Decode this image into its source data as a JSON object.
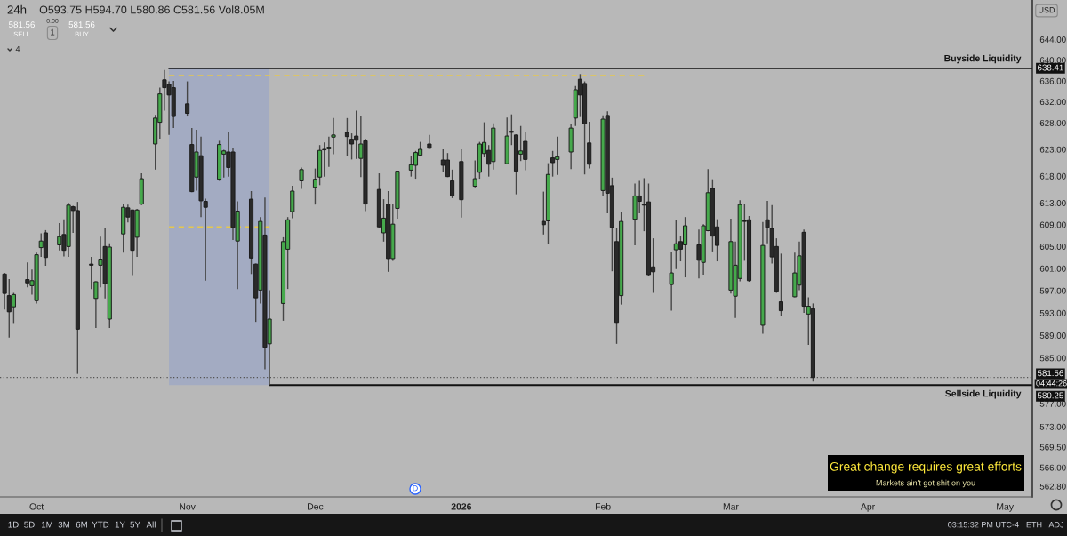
{
  "chart_data": {
    "type": "candlestick",
    "title": "24h",
    "subtitle": "O593.75 H594.70 L580.86 C581.56 Vol8.05M",
    "x": [
      "2025-09-24",
      "2025-09-25",
      "2025-09-26",
      "2025-09-29",
      "2025-09-30",
      "2025-10-01",
      "2025-10-02",
      "2025-10-03",
      "2025-10-06",
      "2025-10-07",
      "2025-10-08",
      "2025-10-09",
      "2025-10-10",
      "2025-10-13",
      "2025-10-14",
      "2025-10-15",
      "2025-10-16",
      "2025-10-17",
      "2025-10-20",
      "2025-10-21",
      "2025-10-22",
      "2025-10-23",
      "2025-10-24",
      "2025-10-27",
      "2025-10-28",
      "2025-10-29",
      "2025-10-30",
      "2025-10-31",
      "2025-11-03",
      "2025-11-04",
      "2025-11-05",
      "2025-11-06",
      "2025-11-07",
      "2025-11-10",
      "2025-11-11",
      "2025-11-12",
      "2025-11-13",
      "2025-11-14",
      "2025-11-17",
      "2025-11-18",
      "2025-11-19",
      "2025-11-20",
      "2025-11-21",
      "2025-11-24",
      "2025-11-25",
      "2025-11-26",
      "2025-11-28",
      "2025-12-01",
      "2025-12-02",
      "2025-12-03",
      "2025-12-04",
      "2025-12-05",
      "2025-12-08",
      "2025-12-09",
      "2025-12-10",
      "2025-12-11",
      "2025-12-12",
      "2025-12-15",
      "2025-12-16",
      "2025-12-17",
      "2025-12-18",
      "2025-12-19",
      "2025-12-22",
      "2025-12-23",
      "2025-12-24",
      "2025-12-26",
      "2025-12-29",
      "2025-12-30",
      "2025-12-31",
      "2026-01-02",
      "2026-01-05",
      "2026-01-06",
      "2026-01-07",
      "2026-01-08",
      "2026-01-09",
      "2026-01-12",
      "2026-01-13",
      "2026-01-14",
      "2026-01-15",
      "2026-01-16",
      "2026-01-20",
      "2026-01-21",
      "2026-01-22",
      "2026-01-23",
      "2026-01-26",
      "2026-01-27",
      "2026-01-28",
      "2026-01-29",
      "2026-01-30",
      "2026-02-02",
      "2026-02-03",
      "2026-02-04",
      "2026-02-05",
      "2026-02-06",
      "2026-02-09",
      "2026-02-10",
      "2026-02-11",
      "2026-02-12",
      "2026-02-13",
      "2026-02-17",
      "2026-02-18",
      "2026-02-19",
      "2026-02-20",
      "2026-02-23",
      "2026-02-24",
      "2026-02-25",
      "2026-02-26",
      "2026-02-27",
      "2026-03-02",
      "2026-03-03",
      "2026-03-04",
      "2026-03-05",
      "2026-03-06",
      "2026-03-09",
      "2026-03-10",
      "2026-03-11",
      "2026-03-12",
      "2026-03-13",
      "2026-03-16",
      "2026-03-17",
      "2026-03-18",
      "2026-03-19",
      "2026-03-20"
    ],
    "ohlc": [
      [
        600.0,
        600.2,
        593.6,
        596.5
      ],
      [
        596.1,
        599.1,
        588.6,
        593.2
      ],
      [
        594.1,
        596.6,
        591.2,
        596.3
      ],
      [
        599.0,
        602.1,
        597.6,
        598.4
      ],
      [
        597.9,
        600.8,
        596.3,
        598.8
      ],
      [
        595.2,
        603.9,
        594.7,
        603.5
      ],
      [
        604.8,
        607.4,
        603.1,
        606.0
      ],
      [
        607.5,
        608.0,
        601.5,
        603.0
      ],
      [
        605.3,
        609.3,
        604.3,
        606.8
      ],
      [
        607.2,
        610.0,
        603.2,
        604.3
      ],
      [
        605.0,
        613.0,
        603.1,
        612.6
      ],
      [
        612.3,
        612.5,
        607.5,
        611.6
      ],
      [
        611.6,
        613.2,
        582.2,
        590.1
      ],
      [
        601.8,
        603.1,
        597.3,
        601.6
      ],
      [
        595.6,
        598.7,
        590.3,
        598.6
      ],
      [
        601.6,
        606.8,
        597.6,
        602.7
      ],
      [
        605.0,
        608.4,
        595.6,
        598.3
      ],
      [
        591.9,
        605.6,
        590.3,
        604.9
      ],
      [
        607.3,
        612.8,
        603.9,
        612.2
      ],
      [
        612.1,
        612.7,
        609.4,
        610.4
      ],
      [
        611.7,
        611.8,
        599.8,
        604.3
      ],
      [
        606.7,
        611.9,
        603.1,
        611.7
      ],
      [
        612.8,
        618.5,
        612.6,
        617.5
      ],
      [
        624.0,
        629.5,
        619.2,
        628.9
      ],
      [
        628.1,
        634.7,
        625.0,
        633.5
      ],
      [
        636.2,
        638.1,
        630.3,
        634.7
      ],
      [
        635.3,
        635.9,
        625.7,
        633.3
      ],
      [
        634.7,
        636.0,
        627.0,
        629.2
      ],
      [
        631.6,
        635.9,
        629.2,
        629.8
      ],
      [
        623.9,
        627.0,
        615.0,
        615.1
      ],
      [
        617.8,
        626.7,
        615.3,
        622.5
      ],
      [
        621.8,
        625.4,
        610.4,
        613.4
      ],
      [
        613.3,
        613.8,
        598.8,
        612.2
      ],
      [
        617.4,
        624.6,
        617.1,
        623.9
      ],
      [
        622.1,
        622.9,
        617.7,
        622.7
      ],
      [
        622.5,
        626.2,
        617.9,
        619.6
      ],
      [
        622.5,
        623.3,
        606.2,
        608.5
      ],
      [
        606.0,
        613.3,
        597.3,
        611.5
      ],
      [
        613.7,
        615.2,
        600.0,
        602.9
      ],
      [
        601.8,
        601.9,
        591.4,
        595.7
      ],
      [
        597.1,
        610.4,
        594.7,
        609.6
      ],
      [
        607.1,
        614.0,
        583.0,
        586.9
      ],
      [
        587.5,
        597.1,
        580.25,
        591.9
      ],
      [
        594.7,
        606.7,
        591.6,
        605.9
      ],
      [
        604.5,
        610.4,
        597.3,
        609.9
      ],
      [
        611.4,
        616.2,
        610.2,
        615.2
      ],
      [
        617.1,
        619.6,
        615.6,
        619.2
      ],
      [
        615.9,
        619.4,
        612.7,
        617.4
      ],
      [
        617.8,
        623.8,
        616.3,
        622.8
      ],
      [
        623.0,
        624.3,
        617.9,
        622.9
      ],
      [
        623.1,
        625.4,
        619.7,
        623.4
      ],
      [
        625.3,
        628.9,
        622.1,
        625.7
      ],
      [
        626.2,
        628.9,
        621.8,
        625.4
      ],
      [
        624.9,
        626.0,
        621.1,
        624.0
      ],
      [
        625.5,
        630.3,
        621.2,
        624.7
      ],
      [
        621.3,
        629.2,
        617.8,
        624.0
      ],
      [
        624.6,
        625.0,
        611.5,
        612.8
      ],
      [
        615.5,
        618.5,
        608.5,
        608.6
      ],
      [
        607.5,
        613.7,
        605.9,
        610.2
      ],
      [
        612.8,
        615.2,
        600.4,
        602.8
      ],
      [
        602.8,
        612.9,
        602.4,
        609.1
      ],
      [
        612.0,
        619.0,
        610.1,
        618.9
      ],
      [
        619.1,
        621.8,
        617.9,
        620.1
      ],
      [
        620.0,
        622.7,
        617.5,
        622.4
      ],
      [
        621.9,
        624.4,
        621.8,
        623.0
      ],
      [
        624.0,
        625.7,
        623.1,
        623.2
      ],
      [
        621.0,
        623.0,
        618.8,
        620.0
      ],
      [
        621.0,
        622.3,
        617.8,
        617.9
      ],
      [
        617.1,
        619.2,
        613.9,
        614.3
      ],
      [
        620.7,
        623.0,
        610.3,
        613.6
      ],
      [
        616.1,
        620.9,
        615.9,
        617.5
      ],
      [
        618.7,
        624.4,
        617.5,
        624.0
      ],
      [
        622.2,
        628.1,
        621.5,
        624.3
      ],
      [
        622.8,
        623.8,
        617.9,
        620.2
      ],
      [
        620.7,
        627.9,
        619.2,
        627.0
      ],
      [
        620.3,
        629.0,
        620.2,
        625.5
      ],
      [
        626.4,
        629.6,
        623.8,
        626.2
      ],
      [
        625.7,
        625.8,
        614.6,
        618.9
      ],
      [
        622.1,
        627.4,
        620.8,
        622.7
      ],
      [
        624.5,
        626.2,
        619.1,
        621.1
      ],
      [
        609.6,
        615.1,
        607.2,
        609.0
      ],
      [
        609.7,
        620.4,
        605.5,
        618.3
      ],
      [
        621.4,
        622.7,
        617.9,
        620.5
      ],
      [
        621.1,
        625.4,
        618.2,
        621.6
      ],
      [
        622.5,
        627.7,
        619.3,
        627.0
      ],
      [
        628.9,
        635.0,
        627.4,
        634.3
      ],
      [
        636.3,
        637.3,
        629.1,
        633.3
      ],
      [
        635.5,
        635.9,
        618.3,
        627.8
      ],
      [
        624.2,
        628.2,
        619.4,
        620.2
      ],
      [
        615.3,
        629.4,
        614.3,
        628.7
      ],
      [
        629.4,
        630.2,
        611.1,
        614.8
      ],
      [
        616.2,
        617.7,
        600.5,
        608.5
      ],
      [
        605.9,
        608.4,
        587.5,
        591.3
      ],
      [
        596.1,
        611.4,
        594.5,
        609.6
      ],
      [
        610.0,
        616.6,
        605.2,
        614.3
      ],
      [
        614.3,
        617.1,
        611.1,
        613.3
      ],
      [
        612.7,
        617.6,
        607.8,
        612.6
      ],
      [
        613.2,
        616.6,
        599.6,
        599.9
      ],
      [
        601.3,
        606.5,
        596.6,
        600.4
      ],
      [
        598.1,
        604.0,
        593.4,
        600.2
      ],
      [
        604.4,
        609.8,
        600.9,
        605.5
      ],
      [
        605.9,
        606.9,
        602.3,
        604.5
      ],
      [
        605.3,
        610.4,
        599.4,
        608.8
      ],
      [
        605.3,
        608.1,
        599.2,
        602.5
      ],
      [
        602.1,
        609.1,
        599.9,
        608.8
      ],
      [
        607.9,
        619.3,
        607.8,
        614.9
      ],
      [
        615.7,
        617.4,
        604.1,
        606.9
      ],
      [
        608.6,
        610.0,
        602.3,
        605.2
      ],
      [
        597.1,
        610.1,
        596.5,
        605.9
      ],
      [
        596.0,
        605.9,
        592.1,
        601.6
      ],
      [
        599.2,
        613.5,
        598.7,
        612.7
      ],
      [
        609.7,
        612.8,
        602.4,
        609.6
      ],
      [
        609.9,
        610.6,
        598.6,
        598.8
      ],
      [
        590.8,
        609.5,
        589.3,
        605.2
      ],
      [
        609.9,
        613.4,
        605.6,
        608.5
      ],
      [
        608.3,
        612.6,
        601.9,
        603.1
      ],
      [
        605.0,
        606.5,
        596.6,
        596.9
      ],
      [
        595.0,
        603.7,
        592.4,
        593.4
      ],
      [
        595.9,
        603.9,
        595.8,
        600.2
      ],
      [
        598.0,
        605.9,
        597.1,
        603.3
      ],
      [
        607.6,
        608.1,
        593.0,
        594.2
      ],
      [
        592.8,
        595.8,
        587.3,
        594.2
      ],
      [
        593.75,
        594.7,
        580.86,
        581.56
      ]
    ],
    "colors": [
      "#2a2a2a",
      "#2a2a2a",
      "#46a94c",
      "#2a2a2a",
      "#46a94c",
      "#46a94c",
      "#46a94c",
      "#2a2a2a",
      "#46a94c",
      "#2a2a2a",
      "#46a94c",
      "#2a2a2a",
      "#2a2a2a",
      "#2a2a2a",
      "#46a94c",
      "#46a94c",
      "#2a2a2a",
      "#46a94c",
      "#46a94c",
      "#2a2a2a",
      "#2a2a2a",
      "#46a94c",
      "#46a94c",
      "#46a94c",
      "#46a94c",
      "#2a2a2a",
      "#2a2a2a",
      "#2a2a2a",
      "#2a2a2a",
      "#2a2a2a",
      "#46a94c",
      "#2a2a2a",
      "#2a2a2a",
      "#46a94c",
      "#46a94c",
      "#2a2a2a",
      "#2a2a2a",
      "#46a94c",
      "#2a2a2a",
      "#2a2a2a",
      "#46a94c",
      "#2a2a2a",
      "#46a94c",
      "#46a94c",
      "#46a94c",
      "#46a94c",
      "#46a94c",
      "#46a94c",
      "#46a94c",
      "#2a2a2a",
      "#46a94c",
      "#46a94c",
      "#2a2a2a",
      "#2a2a2a",
      "#2a2a2a",
      "#46a94c",
      "#2a2a2a",
      "#2a2a2a",
      "#46a94c",
      "#2a2a2a",
      "#46a94c",
      "#46a94c",
      "#46a94c",
      "#46a94c",
      "#46a94c",
      "#2a2a2a",
      "#2a2a2a",
      "#2a2a2a",
      "#2a2a2a",
      "#2a2a2a",
      "#46a94c",
      "#46a94c",
      "#46a94c",
      "#2a2a2a",
      "#46a94c",
      "#46a94c",
      "#2a2a2a",
      "#2a2a2a",
      "#46a94c",
      "#2a2a2a",
      "#2a2a2a",
      "#46a94c",
      "#2a2a2a",
      "#46a94c",
      "#46a94c",
      "#46a94c",
      "#2a2a2a",
      "#2a2a2a",
      "#2a2a2a",
      "#46a94c",
      "#2a2a2a",
      "#2a2a2a",
      "#2a2a2a",
      "#46a94c",
      "#46a94c",
      "#2a2a2a",
      "#2a2a2a",
      "#2a2a2a",
      "#2a2a2a",
      "#46a94c",
      "#46a94c",
      "#2a2a2a",
      "#46a94c",
      "#2a2a2a",
      "#46a94c",
      "#46a94c",
      "#2a2a2a",
      "#2a2a2a",
      "#46a94c",
      "#46a94c",
      "#46a94c",
      "#2a2a2a",
      "#2a2a2a",
      "#46a94c",
      "#2a2a2a",
      "#2a2a2a",
      "#2a2a2a",
      "#2a2a2a",
      "#46a94c",
      "#46a94c",
      "#2a2a2a",
      "#46a94c",
      "#2a2a2a"
    ],
    "series": [
      {
        "type": "line",
        "x": [
          "2025-10-30",
          "2026-02-11"
        ],
        "values": [
          637.0,
          637.0
        ],
        "color": "#e6c84c",
        "line_style": "dashed"
      },
      {
        "type": "line",
        "x": [
          "2025-10-30",
          "2025-11-21"
        ],
        "values": [
          608.6,
          608.6
        ],
        "color": "#e6c84c",
        "line_style": "dashed"
      }
    ],
    "ref_lines": [
      {
        "axis": "y",
        "value": 638.41,
        "label": "Buyside Liquidity",
        "color": "#111111",
        "line_style": "solid"
      },
      {
        "axis": "y",
        "value": 580.25,
        "label": "Sellside Liquidity",
        "color": "#111111",
        "line_style": "solid"
      },
      {
        "axis": "y",
        "value": 581.56,
        "color": "#555555",
        "line_style": "dotted"
      }
    ],
    "bands": [
      {
        "axis": "x",
        "from": "2025-10-30",
        "to": "2025-11-21",
        "color": "#a3abc2"
      }
    ],
    "log": true,
    "xlim": [
      "2025-09-23",
      "2026-05-07"
    ],
    "xticks": [
      {
        "value": "2025-10-01",
        "label": "Oct"
      },
      {
        "value": "2025-11-03",
        "label": "Nov"
      },
      {
        "value": "2025-12-01",
        "label": "Dec"
      },
      {
        "value": "2026-01-02",
        "label": "2026"
      },
      {
        "value": "2026-02-02",
        "label": "Feb"
      },
      {
        "value": "2026-03-02",
        "label": "Mar"
      },
      {
        "value": "2026-04-01",
        "label": "Apr"
      },
      {
        "value": "2026-05-01",
        "label": "May"
      }
    ],
    "ylim": [
      561.0,
      651.7
    ],
    "yticks": [
      {
        "value": 644,
        "label": "644.00"
      },
      {
        "value": 640,
        "label": "640.00"
      },
      {
        "value": 636,
        "label": "636.00"
      },
      {
        "value": 632,
        "label": "632.00"
      },
      {
        "value": 628,
        "label": "628.00"
      },
      {
        "value": 623,
        "label": "623.00"
      },
      {
        "value": 618,
        "label": "618.00"
      },
      {
        "value": 613,
        "label": "613.00"
      },
      {
        "value": 609,
        "label": "609.00"
      },
      {
        "value": 605,
        "label": "605.00"
      },
      {
        "value": 601,
        "label": "601.00"
      },
      {
        "value": 597,
        "label": "597.00"
      },
      {
        "value": 593,
        "label": "593.00"
      },
      {
        "value": 589,
        "label": "589.00"
      },
      {
        "value": 585,
        "label": "585.00"
      },
      {
        "value": 577,
        "label": "577.00"
      },
      {
        "value": 573,
        "label": "573.00"
      },
      {
        "value": 569.5,
        "label": "569.50"
      },
      {
        "value": 566,
        "label": "566.00"
      },
      {
        "value": 562.8,
        "label": "562.80"
      }
    ],
    "annotations": [
      "Great change requires great efforts",
      "Markets ain't got shit on you",
      "04:44:26",
      "D",
      "SELL",
      "BUY",
      "581.56",
      "581.56",
      "0.00",
      "1",
      "4",
      "1D",
      "5D",
      "1M",
      "3M",
      "6M",
      "YTD",
      "1Y",
      "5Y",
      "All",
      "03:15:32 PM UTC-4",
      "ETH",
      "ADJ",
      "USD",
      "638.41",
      "581.56",
      "580.25"
    ]
  }
}
